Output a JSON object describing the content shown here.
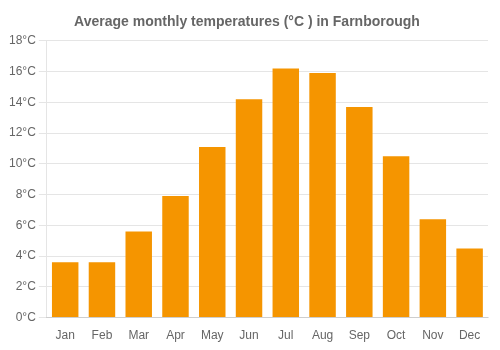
{
  "chart_data": {
    "type": "bar",
    "title": "Average monthly temperatures (°C ) in Farnborough",
    "categories": [
      "Jan",
      "Feb",
      "Mar",
      "Apr",
      "May",
      "Jun",
      "Jul",
      "Aug",
      "Sep",
      "Oct",
      "Nov",
      "Dec"
    ],
    "values": [
      3.6,
      3.6,
      5.6,
      7.9,
      11.1,
      14.2,
      16.2,
      15.9,
      13.7,
      10.5,
      6.4,
      4.5
    ],
    "color": "#F59500",
    "ylim": [
      0,
      18
    ],
    "yticks": [
      {
        "value": 0,
        "label": "0°C"
      },
      {
        "value": 2,
        "label": "2°C"
      },
      {
        "value": 4,
        "label": "4°C"
      },
      {
        "value": 6,
        "label": "6°C"
      },
      {
        "value": 8,
        "label": "8°C"
      },
      {
        "value": 10,
        "label": "10°C"
      },
      {
        "value": 12,
        "label": "12°C"
      },
      {
        "value": 14,
        "label": "14°C"
      },
      {
        "value": 16,
        "label": "16°C"
      },
      {
        "value": 18,
        "label": "18°C"
      }
    ],
    "grid": true
  }
}
